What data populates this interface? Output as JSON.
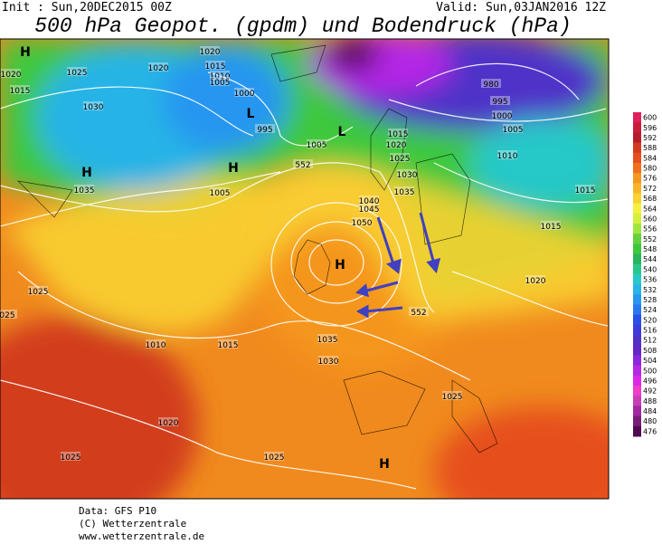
{
  "header": {
    "init": "Init : Sun,20DEC2015 00Z",
    "valid": "Valid: Sun,03JAN2016 12Z",
    "title": "500 hPa Geopot. (gpdm) und Bodendruck (hPa)"
  },
  "map": {
    "isobar_labels": [
      "1020",
      "1025",
      "1020",
      "1020",
      "1015",
      "1030",
      "1015",
      "1010",
      "1005",
      "1000",
      "995",
      "1005",
      "1015",
      "1020",
      "1025",
      "1030",
      "1035",
      "1005",
      "1035",
      "980",
      "995",
      "1000",
      "1005",
      "1010",
      "1015",
      "1015",
      "1040",
      "1045",
      "1050",
      "1020",
      "1025",
      "025",
      "1010",
      "1015",
      "1035",
      "1030",
      "1025",
      "1020",
      "1025",
      "1025",
      "552",
      "552"
    ],
    "pressure_centers": [
      "H",
      "H",
      "H",
      "H",
      "H",
      "L",
      "L"
    ]
  },
  "scale": {
    "values": [
      600,
      596,
      592,
      588,
      584,
      580,
      576,
      572,
      568,
      564,
      560,
      556,
      552,
      548,
      544,
      540,
      536,
      532,
      528,
      524,
      520,
      516,
      512,
      508,
      504,
      500,
      496,
      492,
      488,
      484,
      480,
      476
    ],
    "colors": [
      "#e0205a",
      "#c81e3c",
      "#b41e28",
      "#d23c1e",
      "#e6501e",
      "#f06e1e",
      "#f5961e",
      "#fab428",
      "#fad232",
      "#f5f03c",
      "#d2f03c",
      "#a0e63c",
      "#64d23c",
      "#3cc83c",
      "#28b45a",
      "#28c88c",
      "#28c8c8",
      "#28b4e6",
      "#2896f0",
      "#2878f0",
      "#2850e6",
      "#3c3cdc",
      "#5032c8",
      "#6428c8",
      "#8c28dc",
      "#b428e6",
      "#dc28e6",
      "#f03cc8",
      "#c83cb4",
      "#a028a0",
      "#781e78",
      "#500a50"
    ]
  },
  "footer": {
    "data": "Data: GFS P10",
    "copyright": "(C) Wetterzentrale",
    "url": "www.wetterzentrale.de"
  }
}
